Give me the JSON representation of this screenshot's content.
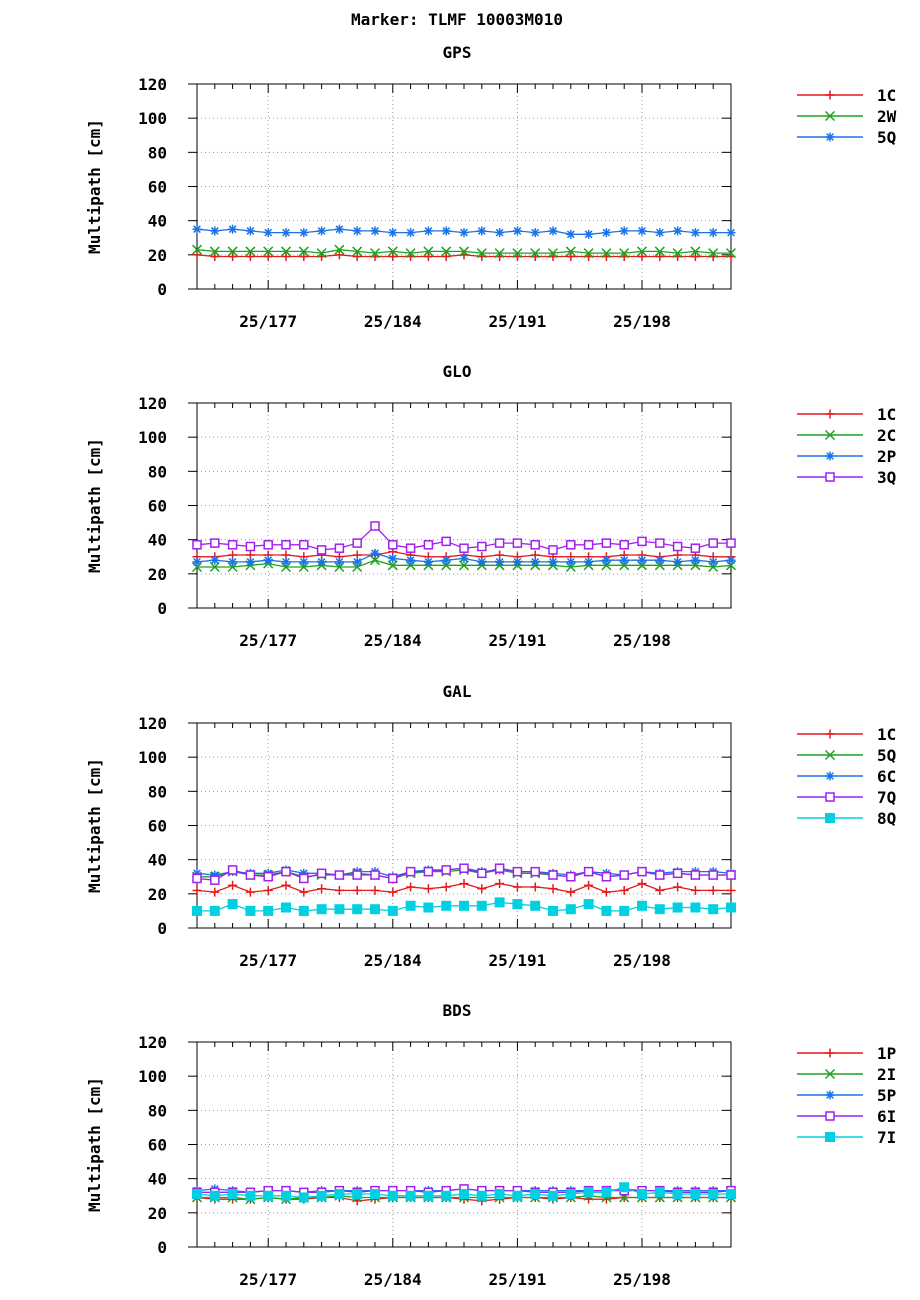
{
  "title": "Marker: TLMF 10003M010",
  "chart_data": [
    {
      "type": "line",
      "title": "GPS",
      "ylabel": "Multipath [cm]",
      "ylim": [
        0,
        120
      ],
      "yticks": [
        0,
        20,
        40,
        60,
        80,
        100,
        120
      ],
      "xlim": [
        172.0,
        202.0
      ],
      "xticks": [
        {
          "value": 176,
          "label": "25/177"
        },
        {
          "value": 183,
          "label": "25/184"
        },
        {
          "value": 190,
          "label": "25/191"
        },
        {
          "value": 197,
          "label": "25/198"
        }
      ],
      "grid": true,
      "legend_position": "right",
      "x": [
        172,
        173,
        174,
        175,
        176,
        177,
        178,
        179,
        180,
        181,
        182,
        183,
        184,
        185,
        186,
        187,
        188,
        189,
        190,
        191,
        192,
        193,
        194,
        195,
        196,
        197,
        198,
        199,
        200,
        201,
        202
      ],
      "series": [
        {
          "name": "1C",
          "color": "#e41a1c",
          "marker": "plus",
          "values": [
            20,
            19,
            19,
            19,
            19,
            19,
            19,
            19,
            20,
            19,
            19,
            19,
            19,
            19,
            19,
            20,
            19,
            19,
            19,
            19,
            19,
            19,
            19,
            19,
            19,
            19,
            19,
            19,
            19,
            19,
            19
          ]
        },
        {
          "name": "2W",
          "color": "#1ca31c",
          "marker": "cross",
          "values": [
            23,
            22,
            22,
            22,
            22,
            22,
            22,
            21,
            23,
            22,
            21,
            22,
            21,
            22,
            22,
            22,
            21,
            21,
            21,
            21,
            21,
            22,
            21,
            21,
            21,
            22,
            22,
            21,
            22,
            21,
            21
          ]
        },
        {
          "name": "5Q",
          "color": "#1a73e8",
          "marker": "star",
          "values": [
            35,
            34,
            35,
            34,
            33,
            33,
            33,
            34,
            35,
            34,
            34,
            33,
            33,
            34,
            34,
            33,
            34,
            33,
            34,
            33,
            34,
            32,
            32,
            33,
            34,
            34,
            33,
            34,
            33,
            33,
            33
          ]
        }
      ]
    },
    {
      "type": "line",
      "title": "GLO",
      "ylabel": "Multipath [cm]",
      "ylim": [
        0,
        120
      ],
      "yticks": [
        0,
        20,
        40,
        60,
        80,
        100,
        120
      ],
      "xlim": [
        172.0,
        202.0
      ],
      "xticks": [
        {
          "value": 176,
          "label": "25/177"
        },
        {
          "value": 183,
          "label": "25/184"
        },
        {
          "value": 190,
          "label": "25/191"
        },
        {
          "value": 197,
          "label": "25/198"
        }
      ],
      "grid": true,
      "legend_position": "right",
      "x": [
        172,
        173,
        174,
        175,
        176,
        177,
        178,
        179,
        180,
        181,
        182,
        183,
        184,
        185,
        186,
        187,
        188,
        189,
        190,
        191,
        192,
        193,
        194,
        195,
        196,
        197,
        198,
        199,
        200,
        201,
        202
      ],
      "series": [
        {
          "name": "1C",
          "color": "#e41a1c",
          "marker": "plus",
          "values": [
            30,
            30,
            31,
            31,
            31,
            31,
            30,
            31,
            30,
            31,
            31,
            33,
            31,
            30,
            30,
            31,
            30,
            31,
            30,
            31,
            30,
            30,
            30,
            30,
            31,
            31,
            30,
            31,
            31,
            30,
            30
          ]
        },
        {
          "name": "2C",
          "color": "#1ca31c",
          "marker": "cross",
          "values": [
            24,
            24,
            24,
            25,
            26,
            24,
            24,
            25,
            24,
            24,
            28,
            25,
            25,
            25,
            25,
            25,
            25,
            25,
            25,
            25,
            25,
            24,
            25,
            25,
            25,
            25,
            25,
            25,
            25,
            24,
            25
          ]
        },
        {
          "name": "2P",
          "color": "#1a73e8",
          "marker": "star",
          "values": [
            27,
            28,
            27,
            27,
            28,
            27,
            27,
            27,
            27,
            27,
            32,
            29,
            28,
            27,
            28,
            29,
            27,
            27,
            27,
            27,
            27,
            27,
            27,
            28,
            28,
            28,
            28,
            27,
            28,
            27,
            28
          ]
        },
        {
          "name": "3Q",
          "color": "#a020f0",
          "marker": "open-square",
          "values": [
            37,
            38,
            37,
            36,
            37,
            37,
            37,
            34,
            35,
            38,
            48,
            37,
            35,
            37,
            39,
            35,
            36,
            38,
            38,
            37,
            34,
            37,
            37,
            38,
            37,
            39,
            38,
            36,
            35,
            38,
            38
          ]
        }
      ]
    },
    {
      "type": "line",
      "title": "GAL",
      "ylabel": "Multipath [cm]",
      "ylim": [
        0,
        120
      ],
      "yticks": [
        0,
        20,
        40,
        60,
        80,
        100,
        120
      ],
      "xlim": [
        172.0,
        202.0
      ],
      "xticks": [
        {
          "value": 176,
          "label": "25/177"
        },
        {
          "value": 183,
          "label": "25/184"
        },
        {
          "value": 190,
          "label": "25/191"
        },
        {
          "value": 197,
          "label": "25/198"
        }
      ],
      "grid": true,
      "legend_position": "right",
      "x": [
        172,
        173,
        174,
        175,
        176,
        177,
        178,
        179,
        180,
        181,
        182,
        183,
        184,
        185,
        186,
        187,
        188,
        189,
        190,
        191,
        192,
        193,
        194,
        195,
        196,
        197,
        198,
        199,
        200,
        201,
        202
      ],
      "series": [
        {
          "name": "1C",
          "color": "#e41a1c",
          "marker": "plus",
          "values": [
            22,
            21,
            25,
            21,
            22,
            25,
            21,
            23,
            22,
            22,
            22,
            21,
            24,
            23,
            24,
            26,
            23,
            26,
            24,
            24,
            23,
            21,
            25,
            21,
            22,
            26,
            22,
            24,
            22,
            22,
            22
          ]
        },
        {
          "name": "5Q",
          "color": "#1ca31c",
          "marker": "cross",
          "values": [
            30,
            30,
            33,
            31,
            31,
            33,
            30,
            31,
            31,
            32,
            31,
            29,
            32,
            33,
            33,
            34,
            32,
            34,
            32,
            32,
            31,
            30,
            33,
            30,
            31,
            33,
            31,
            32,
            31,
            31,
            31
          ]
        },
        {
          "name": "6C",
          "color": "#1a73e8",
          "marker": "star",
          "values": [
            32,
            31,
            33,
            32,
            32,
            34,
            32,
            32,
            31,
            33,
            33,
            30,
            33,
            34,
            34,
            35,
            33,
            34,
            33,
            33,
            32,
            31,
            33,
            32,
            31,
            33,
            32,
            33,
            33,
            33,
            32
          ]
        },
        {
          "name": "7Q",
          "color": "#a020f0",
          "marker": "open-square",
          "values": [
            29,
            28,
            34,
            31,
            30,
            33,
            29,
            32,
            31,
            31,
            31,
            29,
            33,
            33,
            34,
            35,
            32,
            35,
            33,
            33,
            31,
            30,
            33,
            30,
            31,
            33,
            31,
            32,
            31,
            31,
            31
          ]
        },
        {
          "name": "8Q",
          "color": "#00d0e0",
          "marker": "filled-square",
          "values": [
            10,
            10,
            14,
            10,
            10,
            12,
            10,
            11,
            11,
            11,
            11,
            10,
            13,
            12,
            13,
            13,
            13,
            15,
            14,
            13,
            10,
            11,
            14,
            10,
            10,
            13,
            11,
            12,
            12,
            11,
            12
          ]
        }
      ]
    },
    {
      "type": "line",
      "title": "BDS",
      "ylabel": "Multipath [cm]",
      "ylim": [
        0,
        120
      ],
      "yticks": [
        0,
        20,
        40,
        60,
        80,
        100,
        120
      ],
      "xlim": [
        172.0,
        202.0
      ],
      "xticks": [
        {
          "value": 176,
          "label": "25/177"
        },
        {
          "value": 183,
          "label": "25/184"
        },
        {
          "value": 190,
          "label": "25/191"
        },
        {
          "value": 197,
          "label": "25/198"
        }
      ],
      "grid": true,
      "legend_position": "right",
      "x": [
        172,
        173,
        174,
        175,
        176,
        177,
        178,
        179,
        180,
        181,
        182,
        183,
        184,
        185,
        186,
        187,
        188,
        189,
        190,
        191,
        192,
        193,
        194,
        195,
        196,
        197,
        198,
        199,
        200,
        201,
        202
      ],
      "series": [
        {
          "name": "1P",
          "color": "#e41a1c",
          "marker": "plus",
          "values": [
            29,
            28,
            28,
            28,
            29,
            28,
            28,
            29,
            29,
            27,
            28,
            29,
            29,
            29,
            29,
            28,
            27,
            28,
            29,
            29,
            28,
            29,
            28,
            28,
            29,
            29,
            29,
            29,
            29,
            29,
            29
          ]
        },
        {
          "name": "2I",
          "color": "#1ca31c",
          "marker": "cross",
          "values": [
            29,
            29,
            29,
            28,
            29,
            28,
            29,
            29,
            30,
            29,
            29,
            29,
            29,
            29,
            29,
            29,
            29,
            29,
            29,
            29,
            29,
            29,
            30,
            29,
            29,
            29,
            29,
            29,
            29,
            29,
            29
          ]
        },
        {
          "name": "5P",
          "color": "#1a73e8",
          "marker": "star",
          "values": [
            33,
            34,
            33,
            32,
            33,
            33,
            32,
            33,
            33,
            33,
            33,
            33,
            33,
            33,
            33,
            34,
            33,
            33,
            33,
            33,
            33,
            33,
            33,
            33,
            34,
            33,
            33,
            33,
            33,
            33,
            33
          ]
        },
        {
          "name": "6I",
          "color": "#a020f0",
          "marker": "open-square",
          "values": [
            32,
            32,
            32,
            32,
            33,
            33,
            32,
            32,
            33,
            32,
            33,
            33,
            33,
            32,
            33,
            34,
            33,
            33,
            33,
            32,
            32,
            32,
            33,
            33,
            33,
            33,
            33,
            32,
            32,
            32,
            33
          ]
        },
        {
          "name": "7I",
          "color": "#00d0e0",
          "marker": "filled-square",
          "values": [
            31,
            30,
            31,
            30,
            30,
            30,
            29,
            30,
            31,
            31,
            31,
            30,
            30,
            30,
            30,
            31,
            30,
            31,
            30,
            31,
            30,
            31,
            32,
            32,
            35,
            31,
            32,
            31,
            31,
            31,
            31
          ]
        }
      ]
    }
  ]
}
